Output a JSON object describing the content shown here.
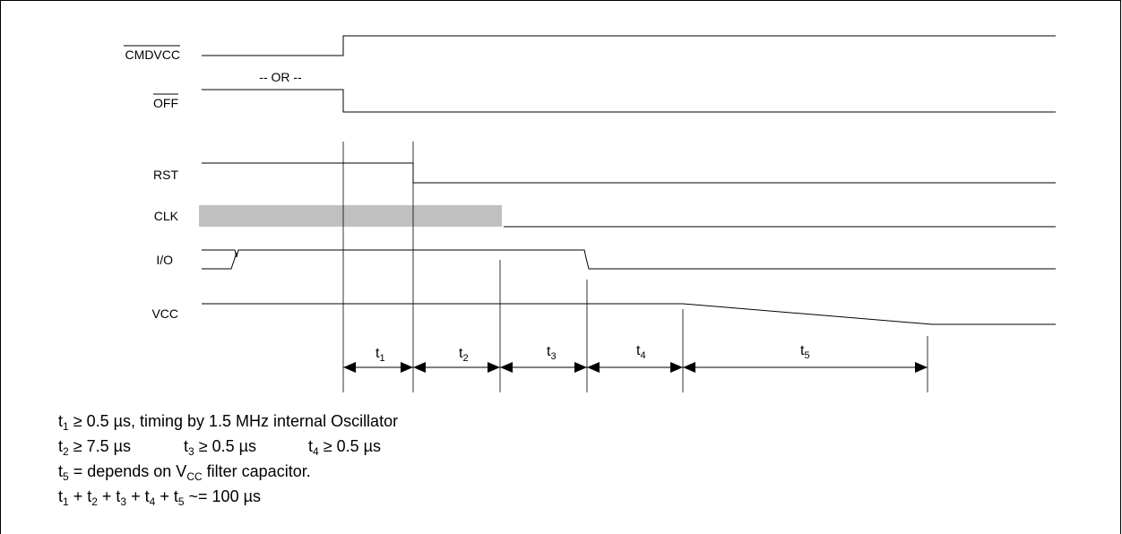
{
  "signals": {
    "cmdvcc": "CMDVCC",
    "or_text": "-- OR --",
    "off": "OFF",
    "rst": "RST",
    "clk": "CLK",
    "io": "I/O",
    "vcc": "VCC"
  },
  "intervals": {
    "t1": {
      "main": "t",
      "sub": "1"
    },
    "t2": {
      "main": "t",
      "sub": "2"
    },
    "t3": {
      "main": "t",
      "sub": "3"
    },
    "t4": {
      "main": "t",
      "sub": "4"
    },
    "t5": {
      "main": "t",
      "sub": "5"
    }
  },
  "notes": {
    "line1": {
      "t": "t",
      "s": "1",
      "rest": " ≥ 0.5 µs, timing by 1.5 MHz internal Oscillator"
    },
    "line2": {
      "a_t": "t",
      "a_s": "2",
      "a_rest": " ≥ 7.5 µs",
      "b_t": "t",
      "b_s": "3",
      "b_rest": " ≥ 0.5 µs",
      "c_t": "t",
      "c_s": "4",
      "c_rest": " ≥ 0.5 µs"
    },
    "line3": {
      "t": "t",
      "s": "5",
      "mid": " =  depends on V",
      "vsub": "CC",
      "rest": " filter capacitor."
    },
    "line4": {
      "t1": "t",
      "s1": "1",
      "p1": " + t",
      "s2": "2",
      "p2": " + t",
      "s3": "3",
      "p3": " + t",
      "s4": "4",
      "p4": " + t",
      "s5": "5",
      "rest": " ~= 100 µs"
    }
  },
  "colors": {
    "clk_fill": "#c0c0c0",
    "line": "#000000"
  }
}
